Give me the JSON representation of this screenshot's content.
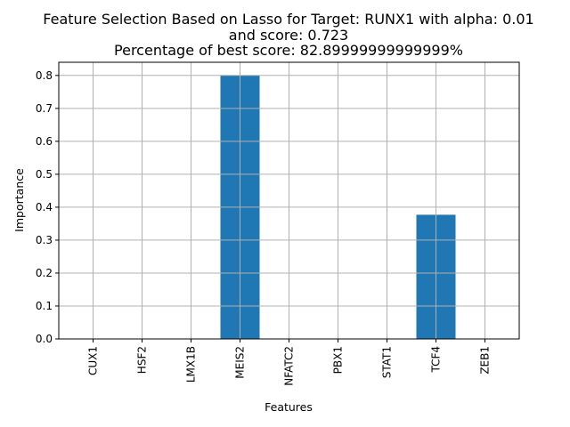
{
  "chart_data": {
    "type": "bar",
    "title_lines": [
      "Feature Selection Based on Lasso for Target: RUNX1 with alpha: 0.01",
      "and score: 0.723",
      "Percentage of best score: 82.89999999999999%"
    ],
    "xlabel": "Features",
    "ylabel": "Importance",
    "categories": [
      "CUX1",
      "HSF2",
      "LMX1B",
      "MEIS2",
      "NFATC2",
      "PBX1",
      "STAT1",
      "TCF4",
      "ZEB1"
    ],
    "values": [
      0.0,
      0.0,
      0.0,
      0.8,
      0.0,
      0.0,
      0.0,
      0.377,
      0.0
    ],
    "ylim": [
      0.0,
      0.84
    ],
    "yticks": [
      "0.0",
      "0.1",
      "0.2",
      "0.3",
      "0.4",
      "0.5",
      "0.6",
      "0.7",
      "0.8"
    ],
    "grid": true,
    "bar_color": "#1f77b4",
    "grid_color": "#b0b0b0"
  }
}
